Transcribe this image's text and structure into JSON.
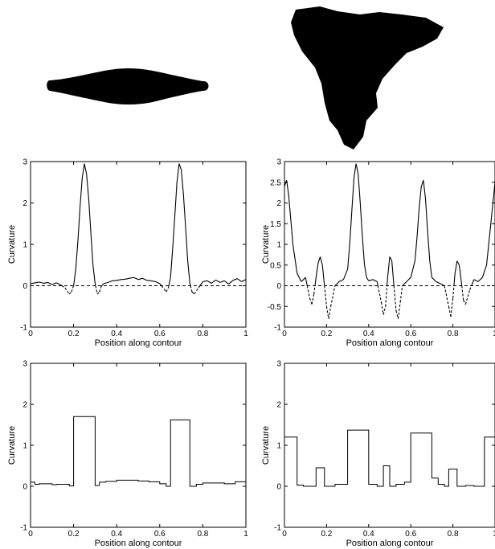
{
  "chart_data": [
    {
      "type": "line",
      "panel": "top-left",
      "xlabel": "Position along contour",
      "ylabel": "Curvature",
      "xlim": [
        0,
        1
      ],
      "ylim": [
        -1,
        3
      ],
      "x_ticks": [
        0,
        0.2,
        0.4,
        0.6,
        0.8,
        1
      ],
      "x_tick_labels": [
        "0",
        "0.2",
        "0.4",
        "0.6",
        "0.8",
        "1"
      ],
      "y_ticks": [
        -1,
        0,
        1,
        2,
        3
      ],
      "y_tick_labels": [
        "-1",
        "0",
        "1",
        "2",
        "3"
      ],
      "zero_line": "dashed",
      "series": [
        {
          "style": "solid-positive-dashed-negative",
          "x": [
            0,
            0.02,
            0.04,
            0.06,
            0.08,
            0.1,
            0.12,
            0.14,
            0.16,
            0.18,
            0.19,
            0.2,
            0.21,
            0.22,
            0.23,
            0.24,
            0.25,
            0.26,
            0.27,
            0.28,
            0.29,
            0.3,
            0.31,
            0.32,
            0.33,
            0.34,
            0.36,
            0.38,
            0.4,
            0.42,
            0.44,
            0.46,
            0.48,
            0.5,
            0.52,
            0.54,
            0.56,
            0.58,
            0.6,
            0.62,
            0.63,
            0.64,
            0.65,
            0.66,
            0.67,
            0.68,
            0.69,
            0.7,
            0.71,
            0.72,
            0.73,
            0.74,
            0.75,
            0.76,
            0.78,
            0.8,
            0.82,
            0.84,
            0.86,
            0.88,
            0.9,
            0.92,
            0.94,
            0.96,
            0.98,
            1
          ],
          "y": [
            0.05,
            0.07,
            0.09,
            0.06,
            0.08,
            0.03,
            0.07,
            0.02,
            -0.05,
            -0.2,
            -0.15,
            0,
            0.4,
            1.1,
            1.9,
            2.6,
            2.95,
            2.7,
            2.1,
            1.3,
            0.5,
            0.05,
            -0.2,
            -0.15,
            0,
            0.05,
            0.08,
            0.12,
            0.13,
            0.15,
            0.16,
            0.18,
            0.2,
            0.15,
            0.18,
            0.13,
            0.12,
            0.1,
            0.05,
            -0.08,
            -0.15,
            -0.05,
            0.2,
            0.9,
            1.7,
            2.5,
            2.95,
            2.8,
            2.2,
            1.4,
            0.6,
            0.05,
            -0.15,
            -0.2,
            -0.05,
            0.1,
            0.12,
            0.06,
            0.14,
            0.08,
            0.12,
            0.04,
            0.13,
            0.17,
            0.1,
            0.15
          ]
        }
      ]
    },
    {
      "type": "line",
      "panel": "top-right",
      "xlabel": "Position along contour",
      "ylabel": "Curvature",
      "xlim": [
        0,
        1
      ],
      "ylim": [
        -1,
        3
      ],
      "x_ticks": [
        0,
        0.2,
        0.4,
        0.6,
        0.8,
        1
      ],
      "x_tick_labels": [
        "0",
        "0.2",
        "0.4",
        "0.6",
        "0.8",
        "1"
      ],
      "y_ticks": [
        -1,
        -0.5,
        0,
        0.5,
        1,
        1.5,
        2,
        2.5,
        3
      ],
      "y_tick_labels": [
        "-1",
        "-0.5",
        "0",
        "0.5",
        "1",
        "1.5",
        "2",
        "2.5",
        "3"
      ],
      "zero_line": "dashed",
      "series": [
        {
          "style": "solid-positive-dashed-negative",
          "x": [
            0,
            0.01,
            0.02,
            0.04,
            0.06,
            0.08,
            0.1,
            0.12,
            0.13,
            0.14,
            0.15,
            0.16,
            0.17,
            0.18,
            0.19,
            0.2,
            0.21,
            0.22,
            0.24,
            0.26,
            0.28,
            0.3,
            0.31,
            0.32,
            0.33,
            0.34,
            0.35,
            0.36,
            0.37,
            0.38,
            0.39,
            0.4,
            0.42,
            0.44,
            0.46,
            0.47,
            0.48,
            0.49,
            0.5,
            0.51,
            0.52,
            0.53,
            0.54,
            0.55,
            0.56,
            0.58,
            0.6,
            0.62,
            0.63,
            0.64,
            0.65,
            0.66,
            0.67,
            0.68,
            0.69,
            0.7,
            0.72,
            0.74,
            0.76,
            0.78,
            0.79,
            0.8,
            0.81,
            0.82,
            0.83,
            0.84,
            0.85,
            0.86,
            0.88,
            0.9,
            0.92,
            0.94,
            0.96,
            0.98,
            1
          ],
          "y": [
            2.4,
            2.55,
            2.2,
            1.0,
            0.3,
            0.1,
            0.2,
            -0.3,
            -0.45,
            -0.2,
            0.2,
            0.55,
            0.7,
            0.5,
            0.0,
            -0.5,
            -0.8,
            -0.5,
            0.0,
            0.1,
            0.15,
            0.4,
            1.0,
            1.8,
            2.6,
            2.95,
            2.7,
            2.0,
            1.2,
            0.5,
            0.2,
            0.12,
            0.15,
            0.1,
            -0.4,
            -0.7,
            -0.5,
            0.2,
            0.7,
            0.6,
            0.0,
            -0.6,
            -0.8,
            -0.4,
            0.0,
            0.1,
            0.2,
            0.6,
            1.2,
            1.9,
            2.4,
            2.55,
            2.1,
            1.3,
            0.6,
            0.2,
            0.1,
            0.05,
            0.0,
            -0.5,
            -0.75,
            -0.3,
            0.3,
            0.6,
            0.5,
            0.1,
            -0.35,
            -0.45,
            -0.1,
            0.15,
            0.1,
            0.2,
            0.5,
            1.5,
            2.5
          ]
        }
      ]
    },
    {
      "type": "line",
      "panel": "bottom-left",
      "step": true,
      "xlabel": "Position along contour",
      "ylabel": "Curvature",
      "xlim": [
        0,
        1
      ],
      "ylim": [
        -1,
        3
      ],
      "x_ticks": [
        0,
        0.2,
        0.4,
        0.6,
        0.8,
        1
      ],
      "x_tick_labels": [
        "0",
        "0.2",
        "0.4",
        "0.6",
        "0.8",
        "1"
      ],
      "y_ticks": [
        -1,
        0,
        1,
        2,
        3
      ],
      "y_tick_labels": [
        "-1",
        "0",
        "1",
        "2",
        "3"
      ],
      "series": [
        {
          "style": "step",
          "x": [
            0,
            0.02,
            0.02,
            0.04,
            0.04,
            0.1,
            0.1,
            0.12,
            0.12,
            0.18,
            0.18,
            0.2,
            0.2,
            0.3,
            0.3,
            0.32,
            0.32,
            0.35,
            0.35,
            0.4,
            0.4,
            0.5,
            0.5,
            0.55,
            0.55,
            0.6,
            0.6,
            0.63,
            0.63,
            0.65,
            0.65,
            0.74,
            0.74,
            0.77,
            0.77,
            0.8,
            0.8,
            0.9,
            0.9,
            0.95,
            0.95,
            1
          ],
          "y": [
            0.1,
            0.1,
            0.05,
            0.05,
            0.06,
            0.06,
            0.04,
            0.04,
            0.05,
            0.05,
            0.01,
            0.01,
            1.7,
            1.7,
            0.02,
            0.02,
            0.1,
            0.1,
            0.12,
            0.12,
            0.15,
            0.15,
            0.13,
            0.13,
            0.11,
            0.11,
            0.06,
            0.06,
            0.0,
            0.0,
            1.62,
            1.62,
            0.0,
            0.0,
            0.05,
            0.05,
            0.08,
            0.08,
            0.06,
            0.06,
            0.11,
            0.11
          ]
        }
      ]
    },
    {
      "type": "line",
      "panel": "bottom-right",
      "step": true,
      "xlabel": "Position along contour",
      "ylabel": "Curvature",
      "xlim": [
        0,
        1
      ],
      "ylim": [
        -1,
        3
      ],
      "x_ticks": [
        0,
        0.2,
        0.4,
        0.6,
        0.8,
        1
      ],
      "x_tick_labels": [
        "0",
        "0.2",
        "0.4",
        "0.6",
        "0.8",
        "1"
      ],
      "y_ticks": [
        -1,
        0,
        1,
        2,
        3
      ],
      "y_tick_labels": [
        "-1",
        "0",
        "1",
        "2",
        "3"
      ],
      "series": [
        {
          "style": "step",
          "x": [
            0,
            0.06,
            0.06,
            0.09,
            0.09,
            0.15,
            0.15,
            0.19,
            0.19,
            0.24,
            0.24,
            0.3,
            0.3,
            0.4,
            0.4,
            0.44,
            0.44,
            0.47,
            0.47,
            0.5,
            0.5,
            0.53,
            0.53,
            0.57,
            0.57,
            0.6,
            0.6,
            0.7,
            0.7,
            0.73,
            0.73,
            0.76,
            0.76,
            0.78,
            0.78,
            0.82,
            0.82,
            0.86,
            0.86,
            0.9,
            0.9,
            0.95,
            0.95,
            1
          ],
          "y": [
            1.2,
            1.2,
            0.03,
            0.03,
            0.0,
            0.0,
            0.45,
            0.45,
            0.0,
            0.0,
            0.05,
            0.05,
            1.37,
            1.37,
            0.05,
            0.05,
            0.0,
            0.0,
            0.5,
            0.5,
            0.0,
            0.0,
            0.05,
            0.05,
            0.1,
            0.1,
            1.3,
            1.3,
            0.2,
            0.2,
            0.05,
            0.05,
            0.0,
            0.0,
            0.42,
            0.42,
            0.0,
            0.0,
            0.02,
            0.02,
            0.0,
            0.0,
            1.2,
            1.2
          ]
        }
      ]
    }
  ],
  "shapes": {
    "left_shape": "elongated-blob",
    "right_shape": "triangular-star-blob",
    "fill_color": "#000000"
  }
}
